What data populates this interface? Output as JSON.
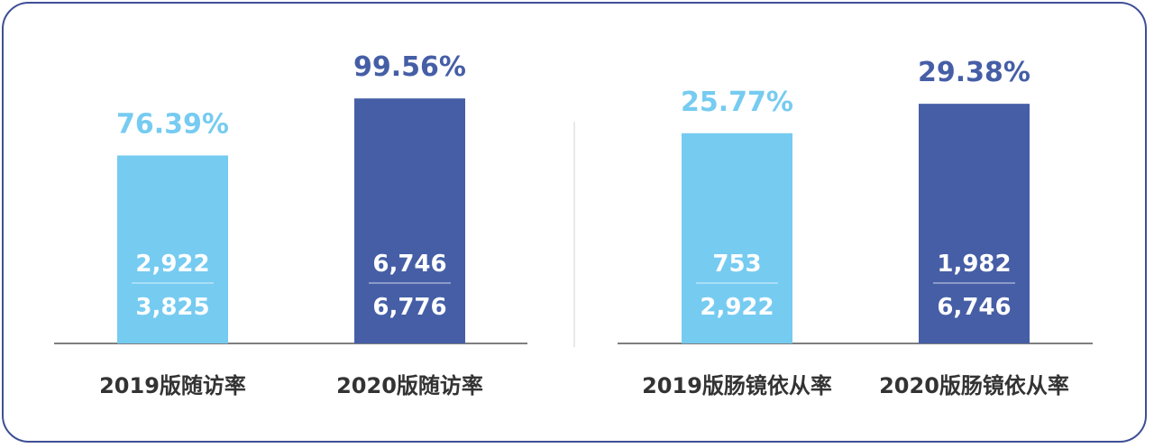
{
  "colors": {
    "light": "#76cbf1",
    "dark": "#455ea6",
    "frame": "#3f4f95",
    "text": "#333333"
  },
  "chart_data": [
    {
      "type": "bar",
      "categories": [
        "2019版随访率",
        "2020版随访率"
      ],
      "values": [
        76.39,
        99.56
      ],
      "value_labels": [
        "76.39%",
        "99.56%"
      ],
      "numerators": [
        "2,922",
        "6,746"
      ],
      "denominators": [
        "3,825",
        "6,776"
      ],
      "ylim": [
        0,
        100
      ],
      "colors": [
        "#76cbf1",
        "#455ea6"
      ]
    },
    {
      "type": "bar",
      "categories": [
        "2019版肠镜依从率",
        "2020版肠镜依从率"
      ],
      "values": [
        25.77,
        29.38
      ],
      "value_labels": [
        "25.77%",
        "29.38%"
      ],
      "numerators": [
        "753",
        "1,982"
      ],
      "denominators": [
        "2,922",
        "6,746"
      ],
      "ylim": [
        0,
        30.5
      ],
      "colors": [
        "#76cbf1",
        "#455ea6"
      ]
    }
  ]
}
